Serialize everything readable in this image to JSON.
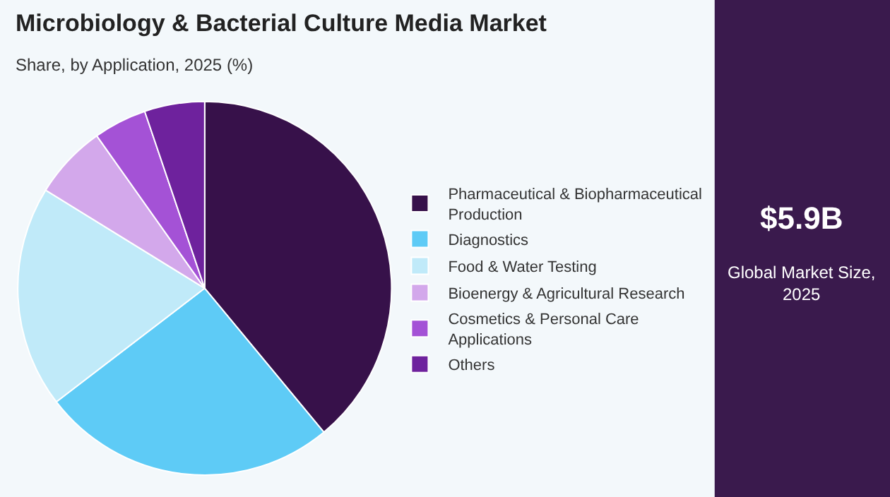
{
  "chart_data": {
    "type": "pie",
    "title": "Microbiology & Bacterial Culture Media Market",
    "subtitle": "Share, by Application, 2025 (%)",
    "categories": [
      "Pharmaceutical & Biopharmaceutical\nProduction",
      "Diagnostics",
      "Food & Water Testing",
      "Bioenergy & Agricultural Research",
      "Cosmetics & Personal Care\nApplications",
      "Others"
    ],
    "values": [
      39.0,
      25.6,
      19.2,
      6.4,
      4.6,
      5.2
    ],
    "colors": [
      "#37114a",
      "#5ecbf6",
      "#c0eaf9",
      "#d3a8eb",
      "#a452d6",
      "#6e229d"
    ],
    "legend": "right",
    "annotations": [
      "$5.9B",
      "Global Market Size,\n2025"
    ]
  }
}
